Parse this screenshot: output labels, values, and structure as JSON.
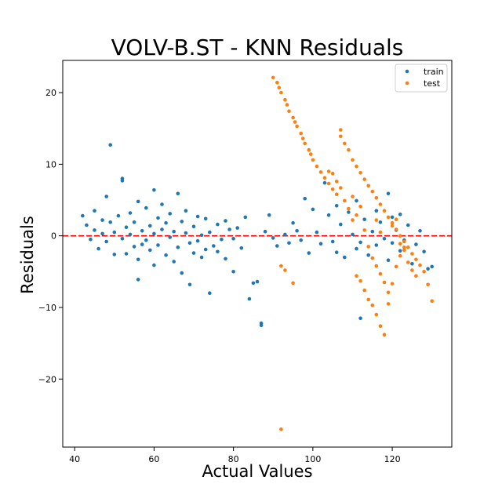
{
  "chart_data": {
    "type": "scatter",
    "title": "VOLV-B.ST - KNN Residuals",
    "xlabel": "Actual Values",
    "ylabel": "Residuals",
    "xlim": [
      37,
      135
    ],
    "ylim": [
      -29.5,
      24.5
    ],
    "xticks": [
      40,
      60,
      80,
      100,
      120
    ],
    "yticks": [
      -20,
      -10,
      0,
      10,
      20
    ],
    "xtick_labels": [
      "40",
      "60",
      "80",
      "100",
      "120"
    ],
    "ytick_labels": [
      "−20",
      "−10",
      "0",
      "10",
      "20"
    ],
    "grid": false,
    "legend_position": "top-right",
    "reference_line": {
      "y": 0,
      "style": "dashed",
      "color": "#ff0000"
    },
    "series": [
      {
        "name": "train",
        "color": "#1f77b4",
        "points": [
          [
            42,
            2.8
          ],
          [
            43,
            1.5
          ],
          [
            44,
            -0.5
          ],
          [
            45,
            3.5
          ],
          [
            45,
            0.8
          ],
          [
            46,
            -1.8
          ],
          [
            47,
            2.2
          ],
          [
            47,
            0.3
          ],
          [
            48,
            -0.8
          ],
          [
            49,
            12.7
          ],
          [
            48,
            5.5
          ],
          [
            49,
            1.9
          ],
          [
            50,
            -2.6
          ],
          [
            50,
            0.5
          ],
          [
            51,
            2.8
          ],
          [
            52,
            8.0
          ],
          [
            52,
            7.7
          ],
          [
            52,
            -0.4
          ],
          [
            53,
            1.2
          ],
          [
            53,
            -2.5
          ],
          [
            54,
            3.2
          ],
          [
            54,
            0.2
          ],
          [
            55,
            -1.5
          ],
          [
            55,
            1.9
          ],
          [
            56,
            -3.3
          ],
          [
            56,
            4.8
          ],
          [
            56,
            -6.1
          ],
          [
            57,
            0.7
          ],
          [
            57,
            -1.2
          ],
          [
            58,
            3.9
          ],
          [
            58,
            -0.6
          ],
          [
            59,
            1.4
          ],
          [
            59,
            -2.0
          ],
          [
            60,
            6.4
          ],
          [
            60,
            0.3
          ],
          [
            60,
            -4.1
          ],
          [
            61,
            2.5
          ],
          [
            61,
            -1.3
          ],
          [
            62,
            0.9
          ],
          [
            62,
            4.4
          ],
          [
            63,
            -2.7
          ],
          [
            63,
            1.8
          ],
          [
            64,
            -0.2
          ],
          [
            64,
            3.1
          ],
          [
            65,
            -3.6
          ],
          [
            65,
            0.6
          ],
          [
            66,
            5.9
          ],
          [
            66,
            -1.6
          ],
          [
            67,
            2.0
          ],
          [
            67,
            -5.2
          ],
          [
            68,
            0.4
          ],
          [
            68,
            3.5
          ],
          [
            69,
            -1.0
          ],
          [
            69,
            -6.8
          ],
          [
            70,
            1.3
          ],
          [
            70,
            -2.4
          ],
          [
            71,
            2.7
          ],
          [
            71,
            -0.7
          ],
          [
            72,
            0.1
          ],
          [
            72,
            -3.0
          ],
          [
            73,
            2.4
          ],
          [
            73,
            -1.9
          ],
          [
            74,
            -8.0
          ],
          [
            74,
            0.5
          ],
          [
            75,
            -1.4
          ],
          [
            76,
            1.6
          ],
          [
            76,
            -2.2
          ],
          [
            77,
            -0.5
          ],
          [
            78,
            2.1
          ],
          [
            78,
            -3.2
          ],
          [
            79,
            0.9
          ],
          [
            80,
            -0.4
          ],
          [
            80,
            -5.0
          ],
          [
            81,
            1.1
          ],
          [
            82,
            -1.7
          ],
          [
            83,
            2.6
          ],
          [
            84,
            -8.8
          ],
          [
            85,
            -6.6
          ],
          [
            86,
            -6.4
          ],
          [
            87,
            -12.2
          ],
          [
            87,
            -12.5
          ],
          [
            88,
            0.6
          ],
          [
            89,
            2.9
          ],
          [
            90,
            -0.3
          ],
          [
            91,
            -1.4
          ],
          [
            93,
            0.2
          ],
          [
            94,
            -1.0
          ],
          [
            95,
            1.8
          ],
          [
            96,
            0.7
          ],
          [
            97,
            -0.6
          ],
          [
            98,
            5.2
          ],
          [
            99,
            -2.4
          ],
          [
            100,
            3.7
          ],
          [
            101,
            0.5
          ],
          [
            102,
            -1.1
          ],
          [
            103,
            7.4
          ],
          [
            104,
            2.9
          ],
          [
            105,
            -0.8
          ],
          [
            106,
            4.2
          ],
          [
            106,
            -2.3
          ],
          [
            107,
            1.6
          ],
          [
            108,
            -3.0
          ],
          [
            109,
            3.3
          ],
          [
            110,
            0.2
          ],
          [
            111,
            -1.8
          ],
          [
            111,
            4.9
          ],
          [
            112,
            -11.5
          ],
          [
            112,
            -0.9
          ],
          [
            113,
            2.3
          ],
          [
            114,
            -2.7
          ],
          [
            115,
            0.6
          ],
          [
            116,
            3.5
          ],
          [
            116,
            -1.3
          ],
          [
            117,
            1.9
          ],
          [
            118,
            -0.4
          ],
          [
            119,
            5.9
          ],
          [
            119,
            -3.4
          ],
          [
            120,
            2.6
          ],
          [
            120,
            -1.0
          ],
          [
            121,
            0.8
          ],
          [
            122,
            -2.1
          ],
          [
            122,
            3.0
          ],
          [
            123,
            -0.6
          ],
          [
            124,
            1.5
          ],
          [
            125,
            -3.9
          ],
          [
            126,
            -1.2
          ],
          [
            127,
            0.7
          ],
          [
            128,
            -2.2
          ],
          [
            129,
            -4.6
          ],
          [
            130,
            -4.3
          ]
        ]
      },
      {
        "name": "test",
        "color": "#ff7f0e",
        "points": [
          [
            90,
            22.1
          ],
          [
            91,
            21.4
          ],
          [
            91.5,
            20.7
          ],
          [
            92,
            20.0
          ],
          [
            93,
            19.0
          ],
          [
            93.5,
            18.3
          ],
          [
            94,
            17.4
          ],
          [
            95,
            16.5
          ],
          [
            95.5,
            15.9
          ],
          [
            96,
            15.3
          ],
          [
            97,
            14.3
          ],
          [
            97.5,
            13.6
          ],
          [
            98,
            12.9
          ],
          [
            99,
            12.0
          ],
          [
            99.5,
            11.4
          ],
          [
            100,
            10.6
          ],
          [
            101,
            9.7
          ],
          [
            102,
            8.9
          ],
          [
            103,
            8.1
          ],
          [
            104,
            7.3
          ],
          [
            105,
            6.5
          ],
          [
            106,
            5.8
          ],
          [
            107,
            14.8
          ],
          [
            107,
            13.9
          ],
          [
            108,
            12.9
          ],
          [
            109,
            12.0
          ],
          [
            110,
            10.6
          ],
          [
            111,
            9.7
          ],
          [
            112,
            8.8
          ],
          [
            113,
            7.9
          ],
          [
            114,
            7.0
          ],
          [
            115,
            6.2
          ],
          [
            116,
            5.3
          ],
          [
            117,
            4.4
          ],
          [
            118,
            3.5
          ],
          [
            119,
            2.6
          ],
          [
            120,
            1.8
          ],
          [
            121,
            0.9
          ],
          [
            122,
            0.0
          ],
          [
            123,
            -0.8
          ],
          [
            124,
            -1.6
          ],
          [
            125,
            -2.5
          ],
          [
            126,
            -3.3
          ],
          [
            127,
            -4.1
          ],
          [
            128,
            -5.0
          ],
          [
            129,
            -6.8
          ],
          [
            130,
            -9.1
          ],
          [
            92,
            -4.2
          ],
          [
            93,
            -4.8
          ],
          [
            95,
            -6.6
          ],
          [
            92,
            -27.0
          ],
          [
            104,
            9.0
          ],
          [
            105,
            8.7
          ],
          [
            106,
            7.6
          ],
          [
            107,
            6.7
          ],
          [
            108,
            4.9
          ],
          [
            109,
            3.8
          ],
          [
            110,
            2.2
          ],
          [
            111,
            -5.6
          ],
          [
            112,
            -6.3
          ],
          [
            113,
            -7.6
          ],
          [
            114,
            -8.9
          ],
          [
            115,
            -9.7
          ],
          [
            116,
            -11.0
          ],
          [
            117,
            -12.6
          ],
          [
            118,
            -13.8
          ],
          [
            119,
            -9.5
          ],
          [
            120,
            -6.7
          ],
          [
            121,
            -4.3
          ],
          [
            122,
            -2.8
          ],
          [
            123,
            -1.6
          ],
          [
            124,
            -3.7
          ],
          [
            125,
            -4.8
          ],
          [
            126,
            -5.6
          ],
          [
            110,
            5.5
          ],
          [
            111,
            2.9
          ],
          [
            112,
            4.1
          ],
          [
            113,
            0.8
          ],
          [
            114,
            -1.5
          ],
          [
            115,
            -3.1
          ],
          [
            116,
            -4.2
          ],
          [
            117,
            -5.3
          ],
          [
            118,
            -6.5
          ],
          [
            119,
            -7.9
          ],
          [
            120,
            1.4
          ],
          [
            121,
            2.3
          ],
          [
            122,
            -1.1
          ],
          [
            123,
            -2.0
          ],
          [
            116,
            2.2
          ],
          [
            117,
            0.5
          ]
        ]
      }
    ]
  }
}
